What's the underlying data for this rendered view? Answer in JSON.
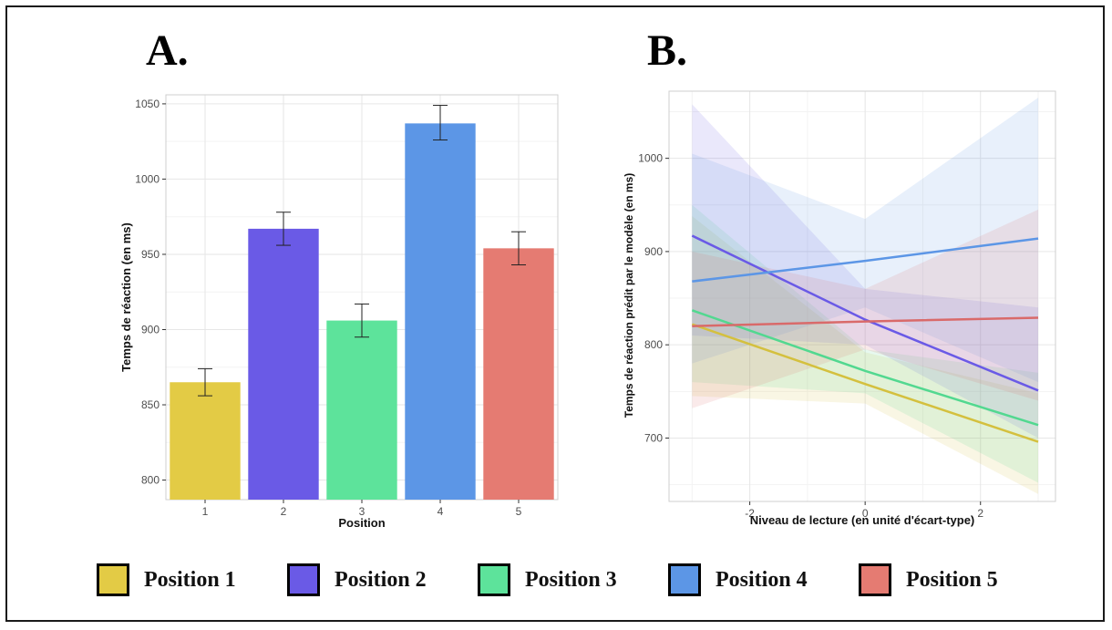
{
  "panels": {
    "a_label": "A.",
    "b_label": "B."
  },
  "legend": [
    {
      "label": "Position 1",
      "color": "#E3CB45"
    },
    {
      "label": "Position 2",
      "color": "#6A5AE6"
    },
    {
      "label": "Position 3",
      "color": "#5DE39B"
    },
    {
      "label": "Position 4",
      "color": "#5C96E6"
    },
    {
      "label": "Position 5",
      "color": "#E57B72"
    }
  ],
  "chart_data": [
    {
      "type": "bar",
      "xlabel": "Position",
      "ylabel": "Temps de réaction (en ms)",
      "categories": [
        "1",
        "2",
        "3",
        "4",
        "5"
      ],
      "values": [
        865,
        967,
        906,
        1037,
        954
      ],
      "error_low": [
        856,
        956,
        895,
        1026,
        943
      ],
      "error_high": [
        874,
        978,
        917,
        1049,
        965
      ],
      "colors": [
        "#E3CB45",
        "#6A5AE6",
        "#5DE39B",
        "#5C96E6",
        "#E57B72"
      ],
      "ylim": [
        787,
        1056
      ],
      "yticks": [
        800,
        850,
        900,
        950,
        1000,
        1050
      ],
      "grid": true
    },
    {
      "type": "line",
      "xlabel": "Niveau de lecture (en unité d'écart-type)",
      "ylabel": "Temps de réaction prédit par le modèle (en ms)",
      "xlim": [
        -3.4,
        3.3
      ],
      "ylim": [
        632,
        1072
      ],
      "xticks": [
        -2,
        0,
        2
      ],
      "yticks": [
        700,
        800,
        900,
        1000
      ],
      "grid": true,
      "series": [
        {
          "color": "#D4C03E",
          "x": [
            -3,
            0,
            3
          ],
          "y": [
            822,
            758,
            696
          ],
          "band_upper": [
            938,
            792,
            748
          ],
          "band_lower": [
            745,
            737,
            640
          ]
        },
        {
          "color": "#6A5AE6",
          "x": [
            -3,
            0,
            3
          ],
          "y": [
            917,
            827,
            751
          ],
          "band_upper": [
            1058,
            860,
            840
          ],
          "band_lower": [
            810,
            800,
            700
          ]
        },
        {
          "color": "#52D890",
          "x": [
            -3,
            0,
            3
          ],
          "y": [
            837,
            772,
            714
          ],
          "band_upper": [
            950,
            795,
            770
          ],
          "band_lower": [
            760,
            748,
            652
          ]
        },
        {
          "color": "#5C96E6",
          "x": [
            -3,
            0,
            3
          ],
          "y": [
            868,
            890,
            914
          ],
          "band_upper": [
            1005,
            935,
            1065
          ],
          "band_lower": [
            780,
            840,
            760
          ]
        },
        {
          "color": "#D96A6A",
          "x": [
            -3,
            0,
            3
          ],
          "y": [
            820,
            825,
            829
          ],
          "band_upper": [
            900,
            860,
            945
          ],
          "band_lower": [
            732,
            795,
            740
          ]
        }
      ]
    }
  ]
}
